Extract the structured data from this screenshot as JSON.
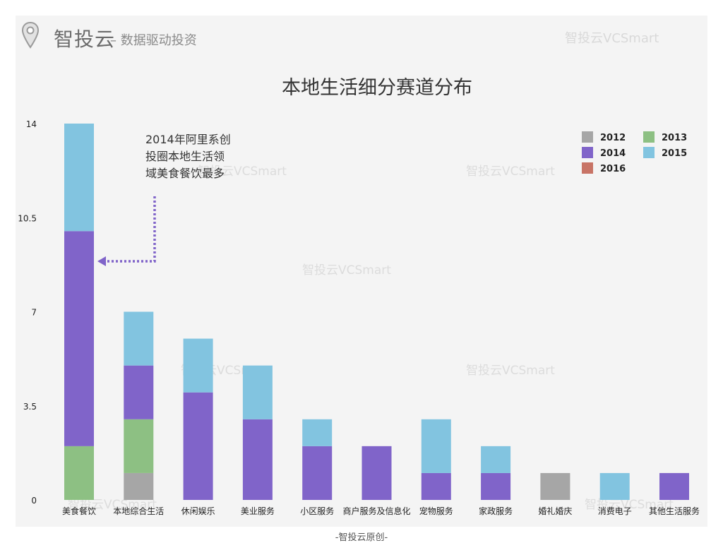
{
  "header": {
    "brand": "智投云",
    "slogan": "– 数据驱动投资",
    "watermark": "智投云VCSmart"
  },
  "footer": "-智投云原创-",
  "chart_data": {
    "type": "bar",
    "stacked": true,
    "title": "本地生活细分赛道分布",
    "xlabel": "",
    "ylabel": "",
    "ylim": [
      0,
      14
    ],
    "yticks": [
      0,
      3.5,
      7,
      10.5,
      14
    ],
    "yticklabels": [
      "0",
      "3.5",
      "7",
      "10.5",
      "14"
    ],
    "categories": [
      "美食餐饮",
      "本地综合生活",
      "休闲娱乐",
      "美业服务",
      "小区服务",
      "商户服务及信息化",
      "宠物服务",
      "家政服务",
      "婚礼婚庆",
      "消费电子",
      "其他生活服务"
    ],
    "series": [
      {
        "name": "2012",
        "color": "#a6a6a6",
        "values": [
          0,
          1,
          0,
          0,
          0,
          0,
          0,
          0,
          1,
          0,
          0
        ]
      },
      {
        "name": "2013",
        "color": "#8dc083",
        "values": [
          2,
          2,
          0,
          0,
          0,
          0,
          0,
          0,
          0,
          0,
          0
        ]
      },
      {
        "name": "2014",
        "color": "#8064c9",
        "values": [
          8,
          2,
          4,
          3,
          2,
          2,
          1,
          1,
          0,
          0,
          1
        ]
      },
      {
        "name": "2015",
        "color": "#82c4e0",
        "values": [
          4,
          2,
          2,
          2,
          1,
          0,
          2,
          1,
          0,
          1,
          0
        ]
      },
      {
        "name": "2016",
        "color": "#c87466",
        "values": [
          0,
          0,
          0,
          0,
          0,
          0,
          0,
          0,
          0,
          0,
          0
        ]
      }
    ],
    "legend_position": "top-right",
    "legend": [
      "2012",
      "2013",
      "2014",
      "2015",
      "2016"
    ],
    "annotation": {
      "lines": [
        "2014年阿里系创",
        "投圈本地生活领",
        "域美食餐饮最多"
      ],
      "points_to": "美食餐饮",
      "color": "#8064c9"
    },
    "watermark": "智投云VCSmart"
  }
}
